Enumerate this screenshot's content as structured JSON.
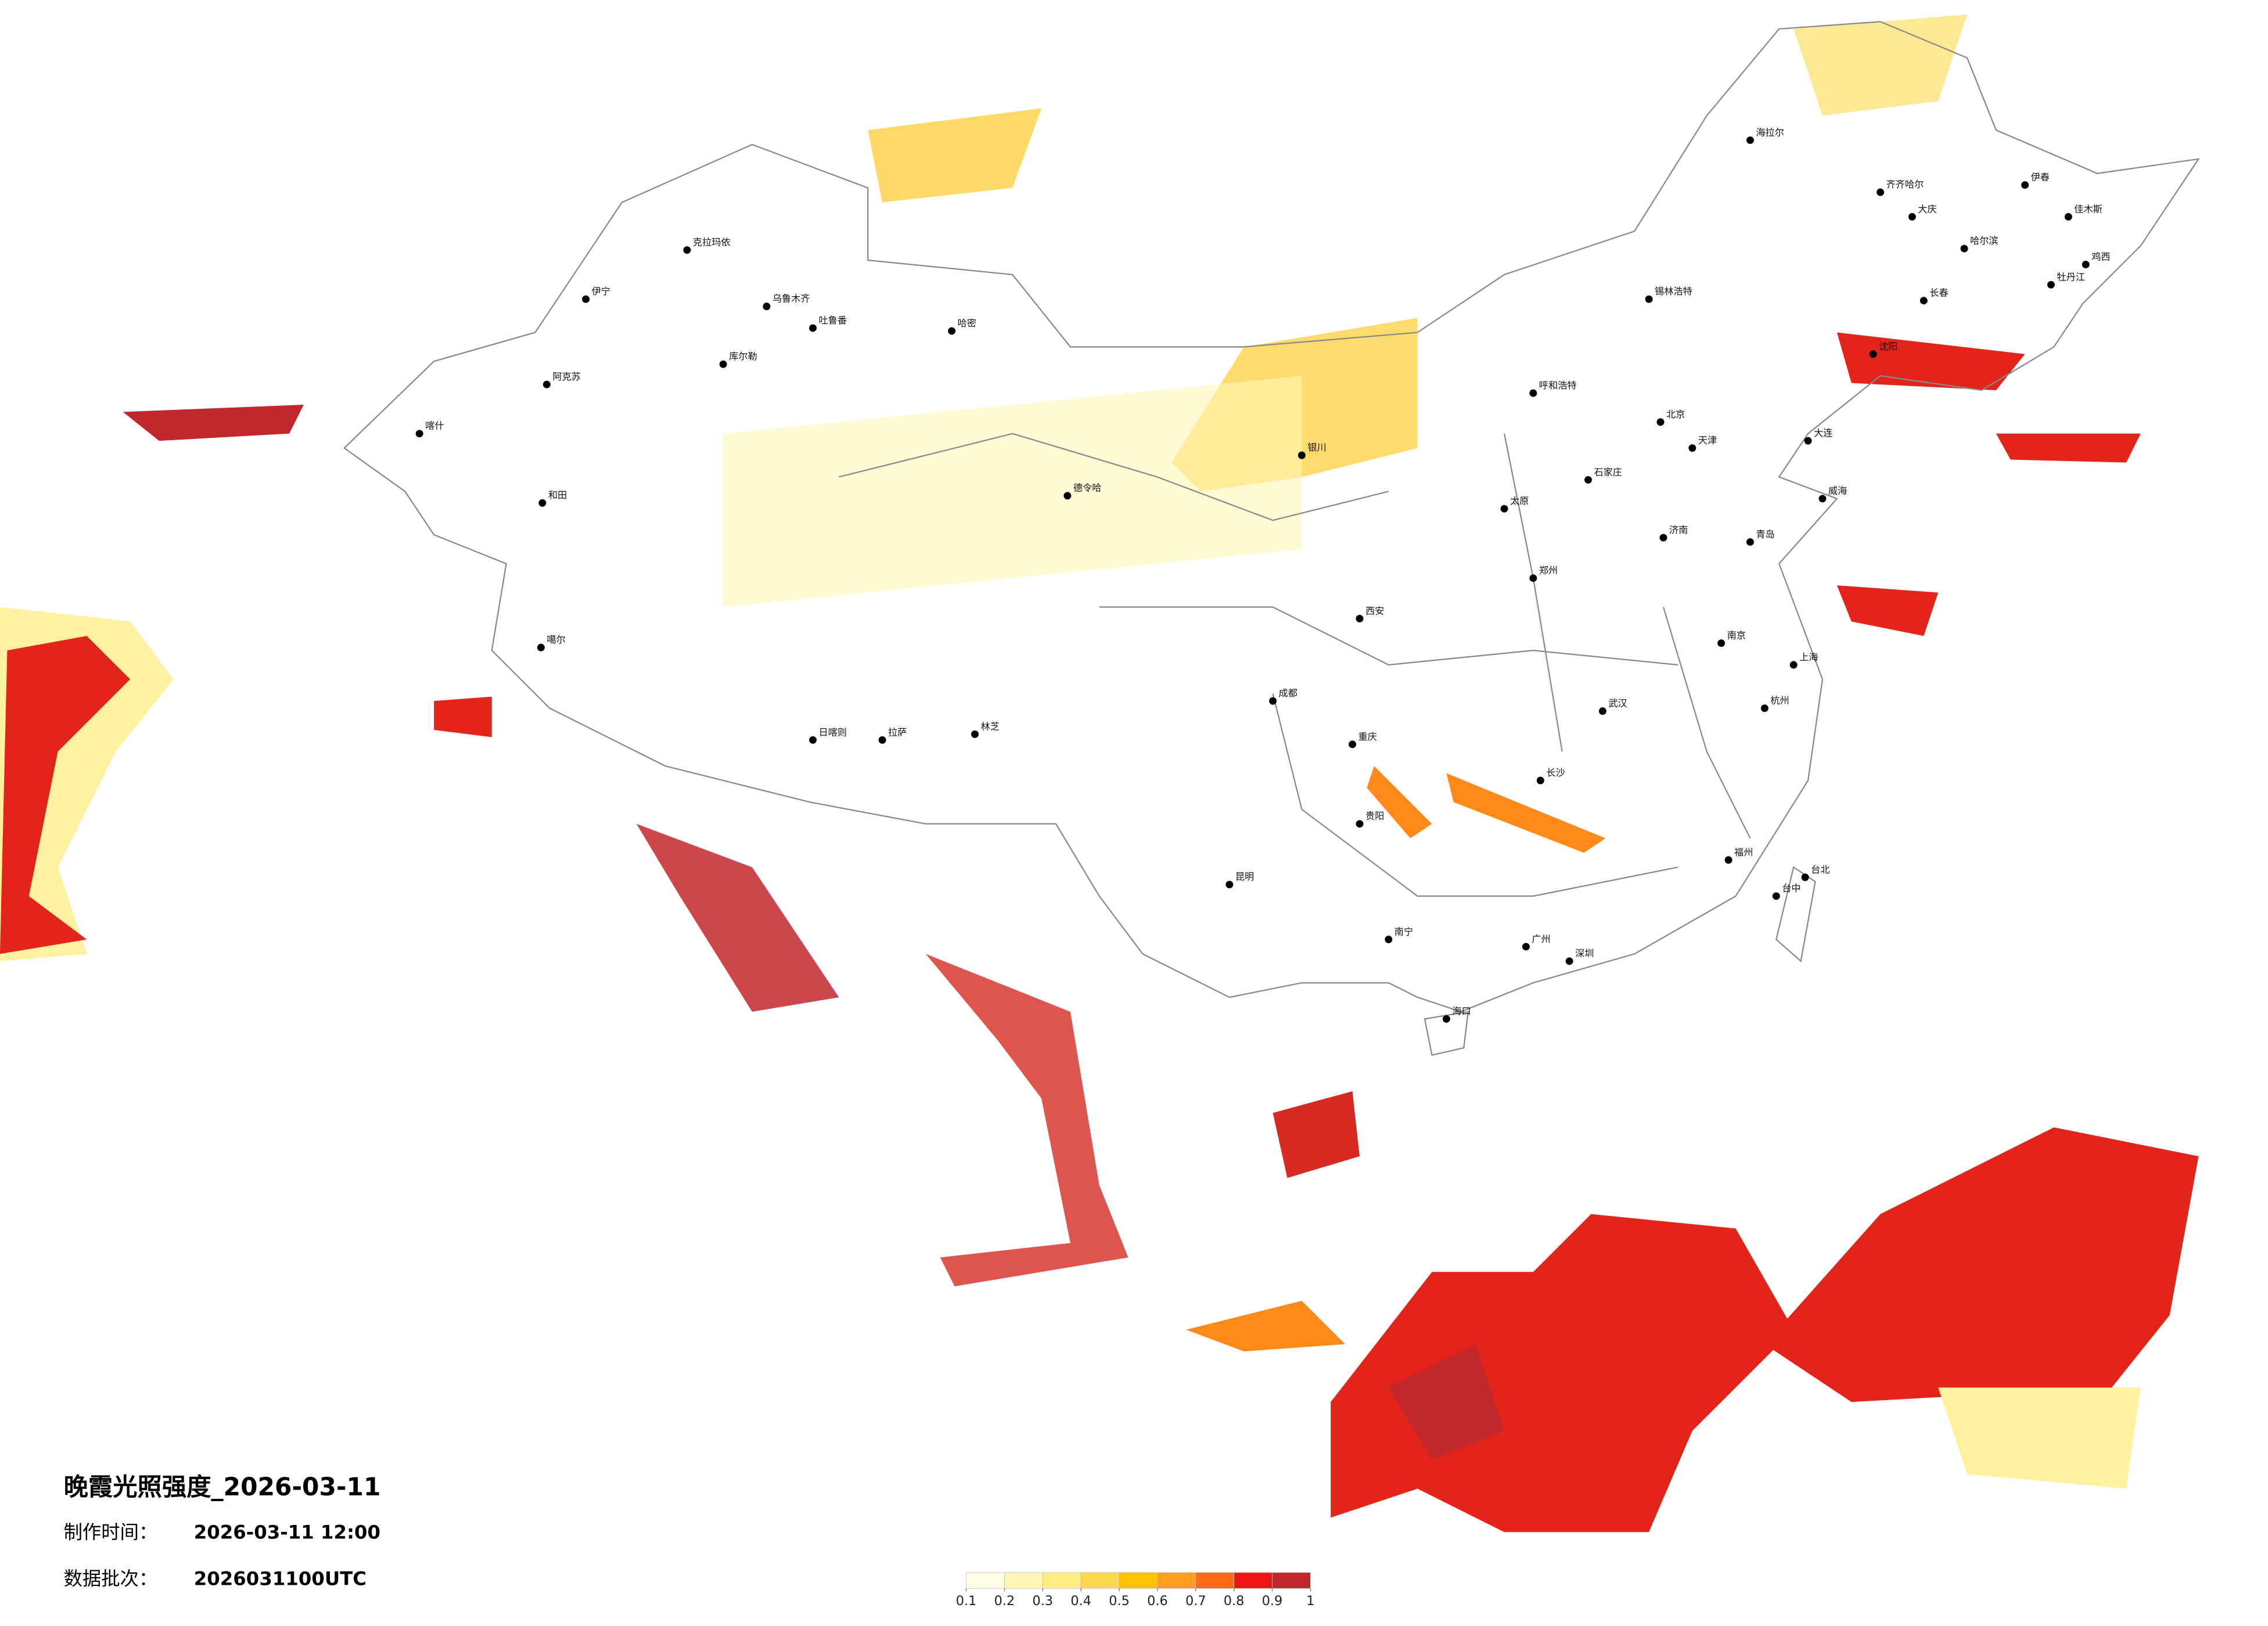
{
  "title": "晚霞光照强度_2026-03-11",
  "info": [
    {
      "label": "制作时间：",
      "value": "2026-03-11 12:00"
    },
    {
      "label": "数据批次：",
      "value": "2026031100UTC"
    }
  ],
  "legend": {
    "ticks": [
      0.1,
      0.2,
      0.3,
      0.4,
      0.5,
      0.6,
      0.7,
      0.8,
      0.9,
      1
    ],
    "colors": [
      "#fffde3",
      "#fff6b8",
      "#ffec85",
      "#ffd94d",
      "#ffc000",
      "#ff9e1c",
      "#ff6b12",
      "#f01515",
      "#c2272d"
    ]
  },
  "cities": [
    "乌鲁木齐",
    "克拉玛依",
    "伊宁",
    "阿克苏",
    "喀什",
    "和田",
    "库尔勒",
    "哈密",
    "吐鲁番",
    "噶尔",
    "日喀则",
    "拉萨",
    "林芝",
    "德令哈",
    "银川",
    "北京",
    "天津",
    "上海",
    "南京",
    "杭州",
    "武汉",
    "长沙",
    "广州",
    "深圳",
    "重庆",
    "成都",
    "贵阳",
    "昆明",
    "南宁",
    "海口",
    "福州",
    "台北",
    "台中",
    "郑州",
    "西安",
    "太原",
    "石家庄",
    "济南",
    "沈阳",
    "长春",
    "哈尔滨",
    "呼和浩特",
    "大庆",
    "齐齐哈尔",
    "海拉尔",
    "锡林浩特",
    "伊春",
    "佳木斯",
    "鸡西",
    "牡丹江",
    "大连",
    "青岛",
    "威海"
  ]
}
